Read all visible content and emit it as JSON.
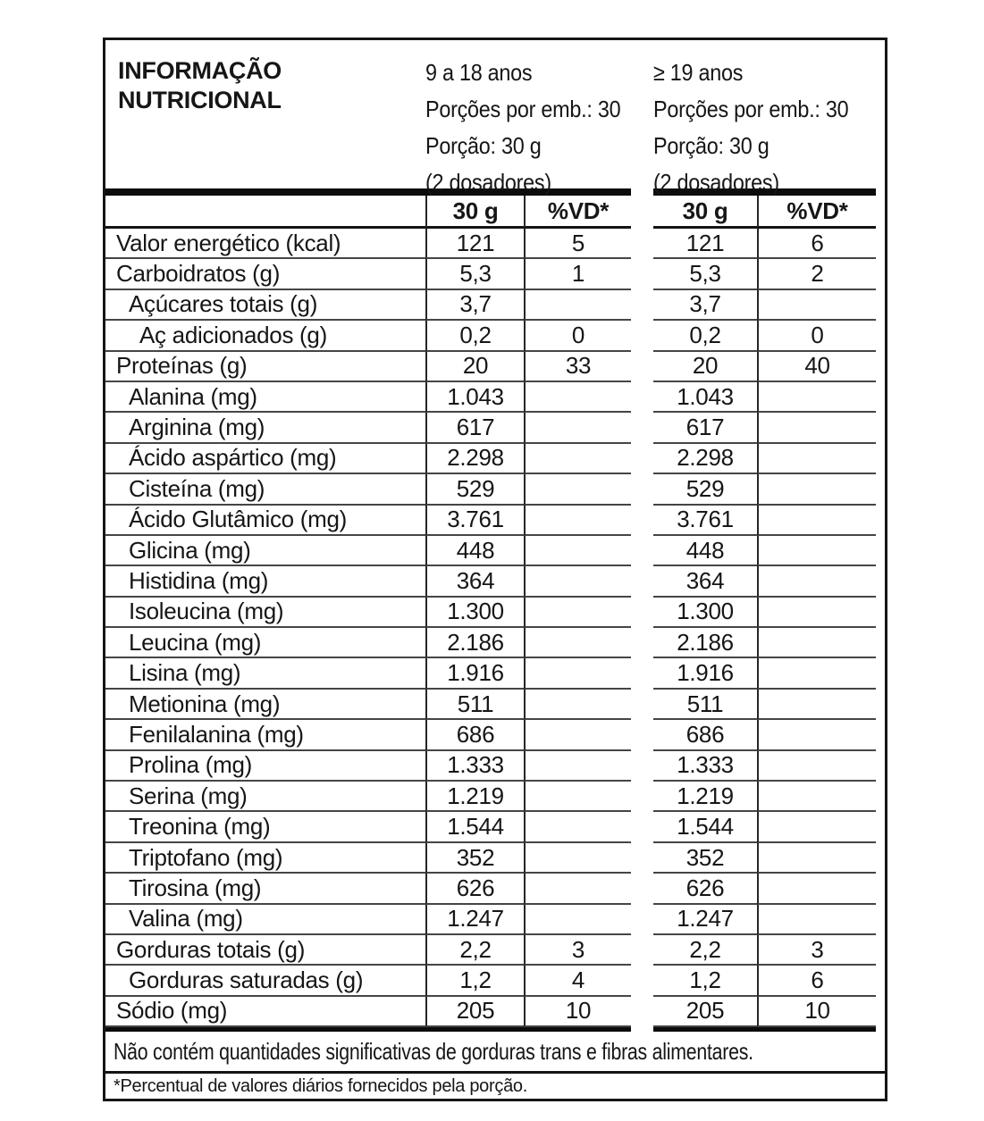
{
  "title": "INFORMAÇÃO\nNUTRICIONAL",
  "groups": [
    {
      "age_range": "9 a 18 anos",
      "servings_per_package": "Porções por emb.: 30",
      "serving_size": "Porção: 30 g",
      "scoops": "(2 dosadores)",
      "amount_header": "30 g",
      "vd_header": "%VD*"
    },
    {
      "age_range": "≥ 19 anos",
      "servings_per_package": "Porções por emb.: 30",
      "serving_size": "Porção: 30 g",
      "scoops": "(2 dosadores)",
      "amount_header": "30 g",
      "vd_header": "%VD*"
    }
  ],
  "rows": [
    {
      "label": "Valor energético (kcal)",
      "indent": 0,
      "g1_amount": "121",
      "g1_vd": "5",
      "g2_amount": "121",
      "g2_vd": "6"
    },
    {
      "label": "Carboidratos (g)",
      "indent": 0,
      "g1_amount": "5,3",
      "g1_vd": "1",
      "g2_amount": "5,3",
      "g2_vd": "2"
    },
    {
      "label": "Açúcares totais (g)",
      "indent": 1,
      "g1_amount": "3,7",
      "g1_vd": "",
      "g2_amount": "3,7",
      "g2_vd": ""
    },
    {
      "label": "Aç adicionados (g)",
      "indent": 2,
      "g1_amount": "0,2",
      "g1_vd": "0",
      "g2_amount": "0,2",
      "g2_vd": "0"
    },
    {
      "label": "Proteínas (g)",
      "indent": 0,
      "g1_amount": "20",
      "g1_vd": "33",
      "g2_amount": "20",
      "g2_vd": "40"
    },
    {
      "label": "Alanina (mg)",
      "indent": 1,
      "g1_amount": "1.043",
      "g1_vd": "",
      "g2_amount": "1.043",
      "g2_vd": ""
    },
    {
      "label": "Arginina (mg)",
      "indent": 1,
      "g1_amount": "617",
      "g1_vd": "",
      "g2_amount": "617",
      "g2_vd": ""
    },
    {
      "label": "Ácido aspártico (mg)",
      "indent": 1,
      "g1_amount": "2.298",
      "g1_vd": "",
      "g2_amount": "2.298",
      "g2_vd": ""
    },
    {
      "label": "Cisteína (mg)",
      "indent": 1,
      "g1_amount": "529",
      "g1_vd": "",
      "g2_amount": "529",
      "g2_vd": ""
    },
    {
      "label": "Ácido Glutâmico (mg)",
      "indent": 1,
      "g1_amount": "3.761",
      "g1_vd": "",
      "g2_amount": "3.761",
      "g2_vd": ""
    },
    {
      "label": "Glicina (mg)",
      "indent": 1,
      "g1_amount": "448",
      "g1_vd": "",
      "g2_amount": "448",
      "g2_vd": ""
    },
    {
      "label": "Histidina (mg)",
      "indent": 1,
      "g1_amount": "364",
      "g1_vd": "",
      "g2_amount": "364",
      "g2_vd": ""
    },
    {
      "label": "Isoleucina (mg)",
      "indent": 1,
      "g1_amount": "1.300",
      "g1_vd": "",
      "g2_amount": "1.300",
      "g2_vd": ""
    },
    {
      "label": "Leucina (mg)",
      "indent": 1,
      "g1_amount": "2.186",
      "g1_vd": "",
      "g2_amount": "2.186",
      "g2_vd": ""
    },
    {
      "label": "Lisina (mg)",
      "indent": 1,
      "g1_amount": "1.916",
      "g1_vd": "",
      "g2_amount": "1.916",
      "g2_vd": ""
    },
    {
      "label": "Metionina (mg)",
      "indent": 1,
      "g1_amount": "511",
      "g1_vd": "",
      "g2_amount": "511",
      "g2_vd": ""
    },
    {
      "label": "Fenilalanina (mg)",
      "indent": 1,
      "g1_amount": "686",
      "g1_vd": "",
      "g2_amount": "686",
      "g2_vd": ""
    },
    {
      "label": "Prolina (mg)",
      "indent": 1,
      "g1_amount": "1.333",
      "g1_vd": "",
      "g2_amount": "1.333",
      "g2_vd": ""
    },
    {
      "label": "Serina (mg)",
      "indent": 1,
      "g1_amount": "1.219",
      "g1_vd": "",
      "g2_amount": "1.219",
      "g2_vd": ""
    },
    {
      "label": "Treonina (mg)",
      "indent": 1,
      "g1_amount": "1.544",
      "g1_vd": "",
      "g2_amount": "1.544",
      "g2_vd": ""
    },
    {
      "label": "Triptofano (mg)",
      "indent": 1,
      "g1_amount": "352",
      "g1_vd": "",
      "g2_amount": "352",
      "g2_vd": ""
    },
    {
      "label": "Tirosina (mg)",
      "indent": 1,
      "g1_amount": "626",
      "g1_vd": "",
      "g2_amount": "626",
      "g2_vd": ""
    },
    {
      "label": "Valina (mg)",
      "indent": 1,
      "g1_amount": "1.247",
      "g1_vd": "",
      "g2_amount": "1.247",
      "g2_vd": ""
    },
    {
      "label": "Gorduras totais (g)",
      "indent": 0,
      "g1_amount": "2,2",
      "g1_vd": "3",
      "g2_amount": "2,2",
      "g2_vd": "3"
    },
    {
      "label": "Gorduras saturadas (g)",
      "indent": 1,
      "g1_amount": "1,2",
      "g1_vd": "4",
      "g2_amount": "1,2",
      "g2_vd": "6"
    },
    {
      "label": "Sódio (mg)",
      "indent": 0,
      "g1_amount": "205",
      "g1_vd": "10",
      "g2_amount": "205",
      "g2_vd": "10"
    }
  ],
  "notes": {
    "no_significant": "Não contém quantidades significativas de gorduras trans e fibras alimentares.",
    "vd_footnote": "*Percentual de valores diários fornecidos pela porção."
  },
  "colors": {
    "text": "#161616",
    "thick_line": "#0c0c0c",
    "thin_line": "#454545",
    "background": "#ffffff"
  }
}
